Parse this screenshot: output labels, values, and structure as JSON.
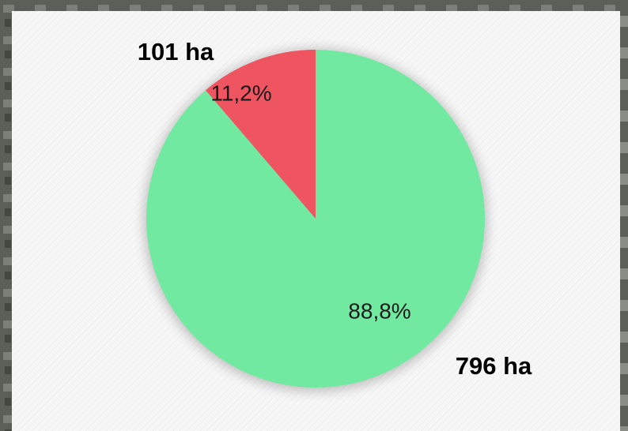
{
  "chart_data": {
    "type": "pie",
    "categories": [
      null,
      null
    ],
    "values": [
      101,
      796
    ],
    "value_labels": [
      "101 ha",
      "796 ha"
    ],
    "percents": [
      11.2,
      88.8
    ],
    "percent_labels": [
      "11,2%",
      "88,8%"
    ],
    "colors": [
      "#ef5461",
      "#72e9a1"
    ]
  }
}
